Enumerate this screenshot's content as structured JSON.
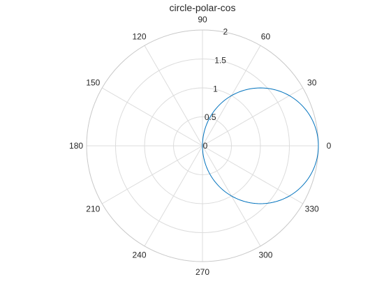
{
  "chart_data": {
    "type": "line",
    "coordinate_system": "polar",
    "title": "circle-polar-cos",
    "theta_ticks": [
      "0",
      "30",
      "60",
      "90",
      "120",
      "150",
      "180",
      "210",
      "240",
      "270",
      "300",
      "330"
    ],
    "theta_tick_values_deg": [
      0,
      30,
      60,
      90,
      120,
      150,
      180,
      210,
      240,
      270,
      300,
      330
    ],
    "r_ticks": [
      "0",
      "0.5",
      "1",
      "1.5",
      "2"
    ],
    "r_tick_values": [
      0,
      0.5,
      1,
      1.5,
      2
    ],
    "rlim": [
      0,
      2
    ],
    "grid": true,
    "series": [
      {
        "equation": "r = 2cos(theta)",
        "color": "#0072bd",
        "theta_deg": [
          -90,
          -75,
          -60,
          -45,
          -30,
          -15,
          0,
          15,
          30,
          45,
          60,
          75,
          90
        ],
        "r": [
          0,
          0.518,
          1,
          1.414,
          1.732,
          1.932,
          2,
          1.932,
          1.732,
          1.414,
          1,
          0.518,
          0
        ]
      }
    ]
  }
}
